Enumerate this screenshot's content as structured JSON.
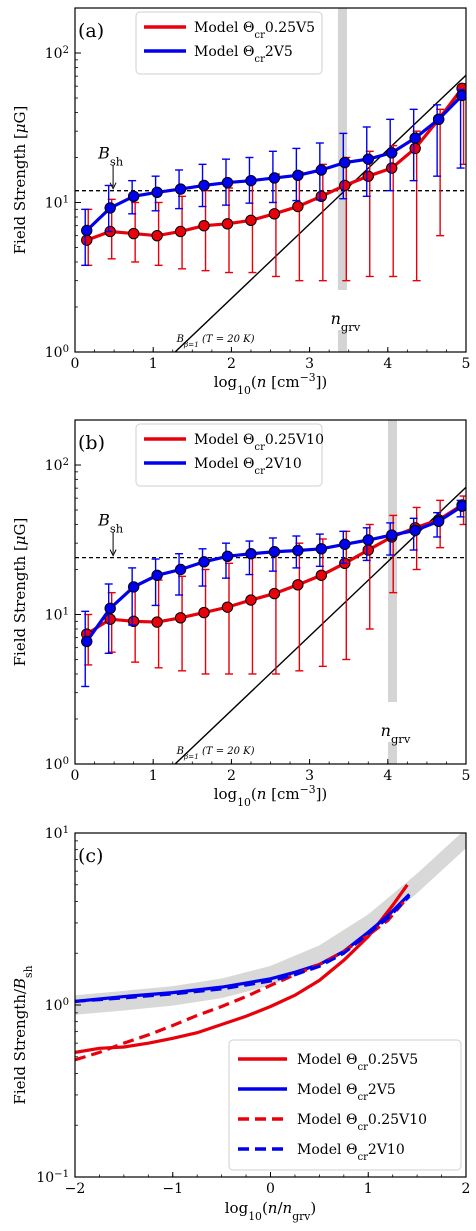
{
  "chart_data": [
    {
      "type": "line",
      "panel_label": "(a)",
      "xlabel": "log10(n [cm^-3])",
      "ylabel": "Field Strength [μG]",
      "xlim": [
        0,
        5
      ],
      "ylim": [
        1,
        200
      ],
      "yscale": "log",
      "x_ticks": [
        "0",
        "1",
        "2",
        "3",
        "4",
        "5"
      ],
      "y_ticks": [
        "10^0",
        "10^1",
        "10^2"
      ],
      "legend_position": "top-center",
      "series": [
        {
          "name": "Model Θcr0.25V5",
          "color": "#e8000b",
          "x": [
            0.15,
            0.45,
            0.75,
            1.05,
            1.35,
            1.65,
            1.95,
            2.25,
            2.55,
            2.85,
            3.15,
            3.45,
            3.75,
            4.05,
            4.35,
            4.65,
            4.95
          ],
          "y": [
            5.6,
            6.4,
            6.2,
            6.0,
            6.4,
            7.0,
            7.2,
            7.6,
            8.4,
            9.4,
            11.0,
            13.0,
            15.0,
            17.0,
            23.0,
            36.0,
            58.0
          ],
          "err_low": [
            3.8,
            4.2,
            4.0,
            3.8,
            3.6,
            3.5,
            3.4,
            3.4,
            3.2,
            3.0,
            3.0,
            3.0,
            3.2,
            3.2,
            3.0,
            6.0,
            18.0
          ],
          "err_high": [
            9.0,
            10.5,
            10.0,
            10.0,
            11.0,
            12.0,
            12.5,
            14.0,
            15.5,
            16.0,
            18.0,
            20.0,
            22.0,
            24.0,
            30.0,
            42.0,
            62.0
          ]
        },
        {
          "name": "Model Θcr2V5",
          "color": "#0000ee",
          "x": [
            0.15,
            0.45,
            0.75,
            1.05,
            1.35,
            1.65,
            1.95,
            2.25,
            2.55,
            2.85,
            3.15,
            3.45,
            3.75,
            4.05,
            4.35,
            4.65,
            4.95
          ],
          "y": [
            6.5,
            9.2,
            11.0,
            11.7,
            12.3,
            13.0,
            13.6,
            14.0,
            14.6,
            15.2,
            16.5,
            18.5,
            19.5,
            21.5,
            27.0,
            36.0,
            52.0
          ],
          "err_low": [
            3.8,
            6.4,
            8.4,
            8.8,
            9.1,
            9.4,
            9.6,
            9.9,
            10.0,
            10.3,
            10.4,
            10.6,
            11.0,
            12.0,
            14.0,
            15.0,
            17.0
          ],
          "err_high": [
            9.0,
            13.0,
            14.0,
            15.0,
            16.5,
            18.0,
            19.5,
            20.0,
            22.0,
            23.0,
            25.0,
            29.0,
            32.0,
            36.0,
            42.0,
            45.0,
            57.0
          ]
        }
      ],
      "shock_field": 12.0,
      "shock_label": "B_sh",
      "n_grv": 3.42,
      "n_grv_label": "n_grv",
      "beta_line": {
        "x": [
          1.28,
          5.0
        ],
        "y": [
          1.0,
          71.0
        ],
        "label": "Bβ=1 (T = 20 K)"
      }
    },
    {
      "type": "line",
      "panel_label": "(b)",
      "xlabel": "log10(n [cm^-3])",
      "ylabel": "Field Strength [μG]",
      "xlim": [
        0,
        5
      ],
      "ylim": [
        1,
        200
      ],
      "yscale": "log",
      "x_ticks": [
        "0",
        "1",
        "2",
        "3",
        "4",
        "5"
      ],
      "y_ticks": [
        "10^0",
        "10^1",
        "10^2"
      ],
      "legend_position": "top-center",
      "series": [
        {
          "name": "Model Θcr0.25V10",
          "color": "#e8000b",
          "x": [
            0.15,
            0.45,
            0.75,
            1.05,
            1.35,
            1.65,
            1.95,
            2.25,
            2.55,
            2.85,
            3.15,
            3.45,
            3.75,
            4.05,
            4.35,
            4.65,
            4.95
          ],
          "y": [
            7.4,
            9.3,
            9.0,
            8.9,
            9.5,
            10.3,
            11.2,
            12.5,
            13.8,
            15.8,
            18.3,
            22.0,
            27.0,
            33.0,
            38.0,
            43.0,
            54.0
          ],
          "err_low": [
            4.6,
            5.6,
            4.8,
            4.4,
            4.2,
            4.0,
            4.0,
            4.0,
            4.0,
            4.2,
            4.5,
            5.0,
            8.0,
            14.0,
            20.0,
            28.0,
            40.0
          ],
          "err_high": [
            10.0,
            14.0,
            16.0,
            17.0,
            18.0,
            20.0,
            22.0,
            24.0,
            27.0,
            30.0,
            32.0,
            36.0,
            40.0,
            46.0,
            52.0,
            58.0,
            62.0
          ]
        },
        {
          "name": "Model Θcr2V10",
          "color": "#0000ee",
          "x": [
            0.15,
            0.45,
            0.75,
            1.05,
            1.35,
            1.65,
            1.95,
            2.25,
            2.55,
            2.85,
            3.15,
            3.45,
            3.75,
            4.05,
            4.35,
            4.65,
            4.95
          ],
          "y": [
            6.6,
            11.0,
            15.3,
            18.3,
            20.0,
            22.5,
            24.5,
            25.5,
            26.3,
            26.8,
            27.5,
            29.5,
            31.5,
            34.0,
            36.5,
            42.0,
            53.0
          ],
          "err_low": [
            3.3,
            5.5,
            8.5,
            11.5,
            13.5,
            15.5,
            17.5,
            18.5,
            19.5,
            20.5,
            21.0,
            22.0,
            23.0,
            25.0,
            27.0,
            33.0,
            45.0
          ],
          "err_high": [
            10.5,
            16.0,
            20.5,
            23.5,
            25.5,
            27.5,
            30.0,
            31.0,
            32.5,
            33.5,
            34.5,
            36.0,
            38.0,
            41.0,
            44.0,
            48.0,
            58.0
          ]
        }
      ],
      "shock_field": 24.0,
      "shock_label": "B_sh",
      "n_grv": 4.06,
      "n_grv_label": "n_grv",
      "beta_line": {
        "x": [
          1.28,
          5.0
        ],
        "y": [
          1.0,
          71.0
        ],
        "label": "Bβ=1 (T = 20 K)"
      }
    },
    {
      "type": "line",
      "panel_label": "(c)",
      "xlabel": "log10(n/n_grv)",
      "ylabel": "Field Strength/B_sh",
      "xlim": [
        -2,
        2
      ],
      "ylim": [
        0.1,
        10
      ],
      "yscale": "log",
      "x_ticks": [
        "−2",
        "−1",
        "0",
        "1",
        "2"
      ],
      "y_ticks": [
        "10^-1",
        "10^0",
        "10^1"
      ],
      "legend_position": "bottom-right",
      "band": {
        "x": [
          -2.0,
          -1.5,
          -1.0,
          -0.5,
          0.0,
          0.5,
          1.0,
          1.5,
          2.0
        ],
        "center": [
          1.0,
          1.06,
          1.13,
          1.25,
          1.48,
          1.95,
          2.95,
          5.1,
          9.3
        ],
        "half_width_factor": 1.14
      },
      "series": [
        {
          "name": "Model Θcr0.25V5",
          "color": "#e8000b",
          "dash": "solid",
          "x": [
            -2.0,
            -1.75,
            -1.5,
            -1.25,
            -1.0,
            -0.75,
            -0.5,
            -0.25,
            0.0,
            0.25,
            0.5,
            0.75,
            1.0,
            1.25,
            1.4
          ],
          "y": [
            0.53,
            0.56,
            0.57,
            0.6,
            0.64,
            0.69,
            0.77,
            0.86,
            0.98,
            1.14,
            1.39,
            1.82,
            2.5,
            3.8,
            5.0
          ]
        },
        {
          "name": "Model Θcr2V5",
          "color": "#0000ee",
          "dash": "solid",
          "x": [
            -2.0,
            -1.5,
            -1.0,
            -0.5,
            0.0,
            0.25,
            0.5,
            0.75,
            1.0,
            1.2,
            1.42
          ],
          "y": [
            1.05,
            1.12,
            1.18,
            1.27,
            1.42,
            1.55,
            1.72,
            2.05,
            2.65,
            3.3,
            4.4
          ]
        },
        {
          "name": "Model Θcr0.25V10",
          "color": "#e8000b",
          "dash": "dashed",
          "x": [
            -2.0,
            -1.75,
            -1.5,
            -1.25,
            -1.0,
            -0.75,
            -0.5,
            -0.25,
            0.0,
            0.25,
            0.5,
            0.75,
            1.0,
            1.2,
            1.4
          ],
          "y": [
            0.48,
            0.53,
            0.6,
            0.67,
            0.76,
            0.87,
            0.98,
            1.12,
            1.3,
            1.5,
            1.72,
            2.05,
            2.55,
            3.1,
            4.2
          ]
        },
        {
          "name": "Model Θcr2V10",
          "color": "#0000ee",
          "dash": "dashed",
          "x": [
            -2.0,
            -1.5,
            -1.0,
            -0.5,
            0.0,
            0.25,
            0.5,
            0.75,
            1.0,
            1.2,
            1.42
          ],
          "y": [
            1.05,
            1.1,
            1.16,
            1.24,
            1.38,
            1.5,
            1.68,
            2.0,
            2.6,
            3.2,
            4.3
          ]
        }
      ]
    }
  ]
}
